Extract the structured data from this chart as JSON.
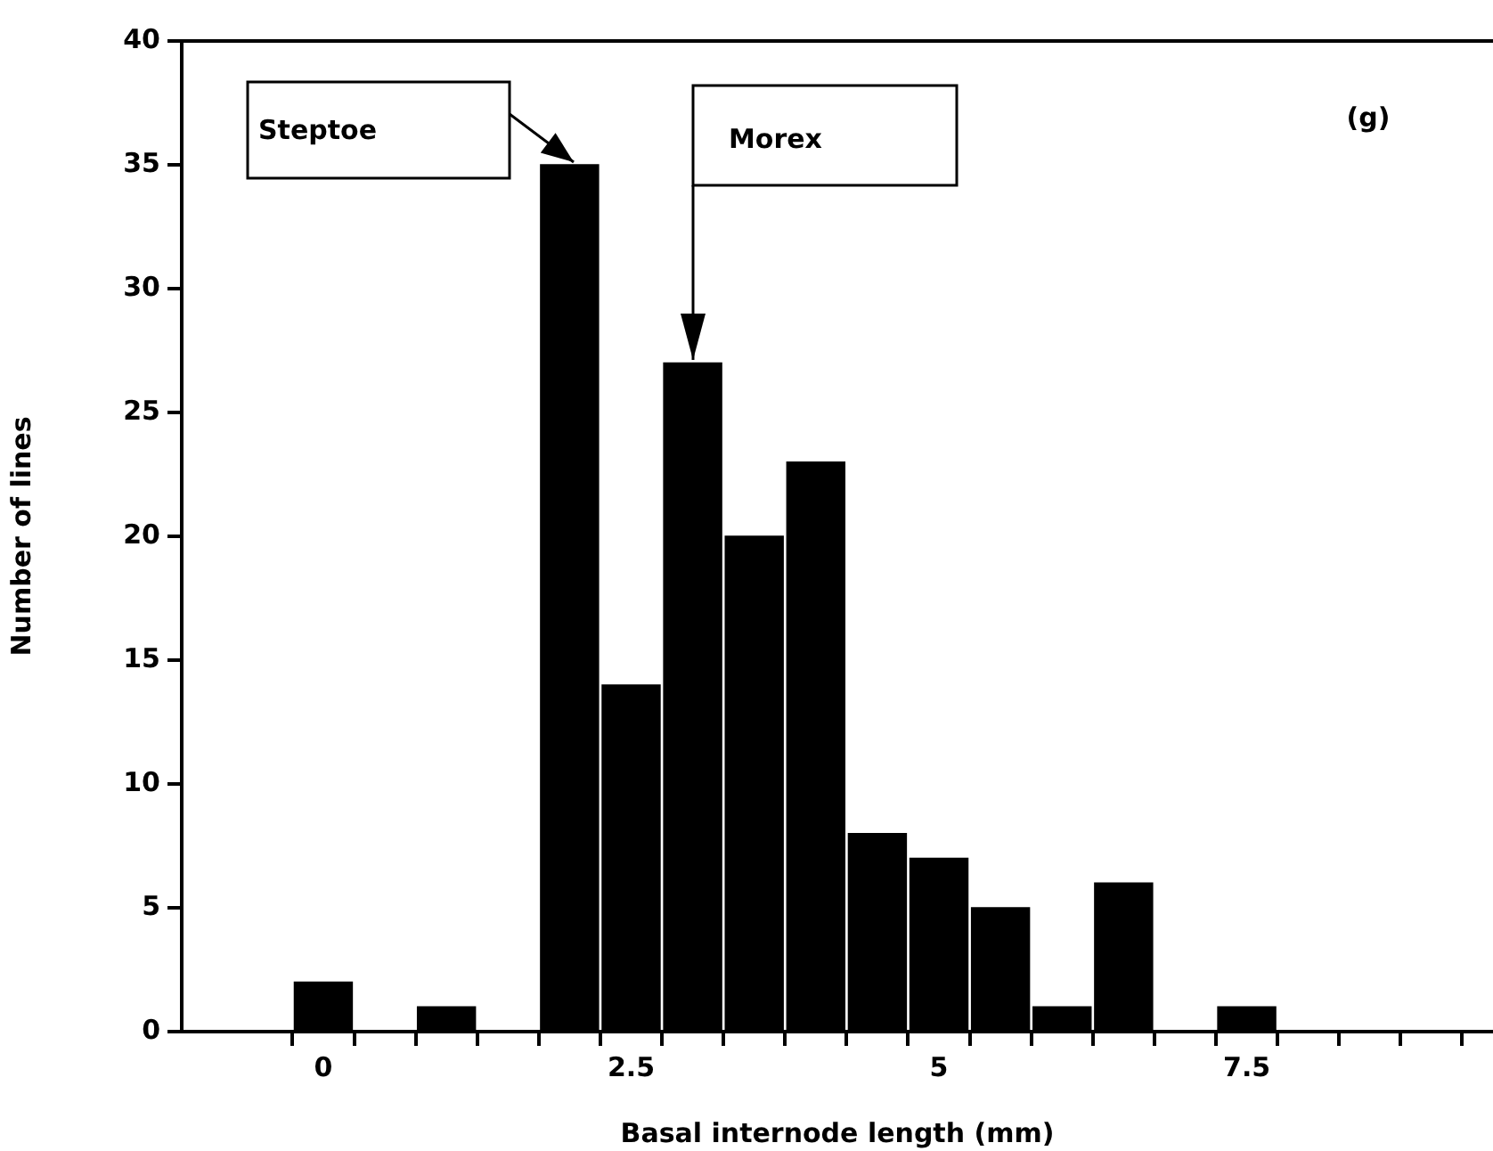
{
  "chart_data": {
    "type": "histogram",
    "xlabel": "Basal internode length (mm)",
    "ylabel": "Number of lines",
    "bins": [
      -0.25,
      0.25,
      0.75,
      1.25,
      1.75,
      2.25,
      2.75,
      3.25,
      3.75,
      4.25,
      4.75,
      5.25,
      5.75,
      6.25,
      6.75,
      7.25,
      7.75
    ],
    "values": [
      2,
      0,
      1,
      0,
      35,
      14,
      27,
      20,
      23,
      8,
      7,
      5,
      1,
      6,
      0,
      1
    ],
    "color": "#000000",
    "xlim": [
      -1.15,
      9.5
    ],
    "xticks": [
      {
        "value": -0.25,
        "label": null
      },
      {
        "value": 0,
        "label": "0"
      },
      {
        "value": 0.25,
        "label": null
      },
      {
        "value": 0.75,
        "label": null
      },
      {
        "value": 1.25,
        "label": null
      },
      {
        "value": 1.75,
        "label": null
      },
      {
        "value": 2.25,
        "label": null
      },
      {
        "value": 2.5,
        "label": "2.5"
      },
      {
        "value": 2.75,
        "label": null
      },
      {
        "value": 3.25,
        "label": null
      },
      {
        "value": 3.75,
        "label": null
      },
      {
        "value": 4.25,
        "label": null
      },
      {
        "value": 4.75,
        "label": null
      },
      {
        "value": 5,
        "label": "5"
      },
      {
        "value": 5.25,
        "label": null
      },
      {
        "value": 5.75,
        "label": null
      },
      {
        "value": 6.25,
        "label": null
      },
      {
        "value": 6.75,
        "label": null
      },
      {
        "value": 7.25,
        "label": null
      },
      {
        "value": 7.5,
        "label": "7.5"
      },
      {
        "value": 7.75,
        "label": null
      },
      {
        "value": 8.25,
        "label": null
      },
      {
        "value": 8.75,
        "label": null
      },
      {
        "value": 9.25,
        "label": null
      }
    ],
    "ylim": [
      0,
      40
    ],
    "yticks": [
      0,
      5,
      10,
      15,
      20,
      25,
      30,
      35,
      40
    ],
    "grid": false,
    "legend": false,
    "annotations": [
      "Steptoe",
      "Morex",
      "(g)"
    ]
  }
}
